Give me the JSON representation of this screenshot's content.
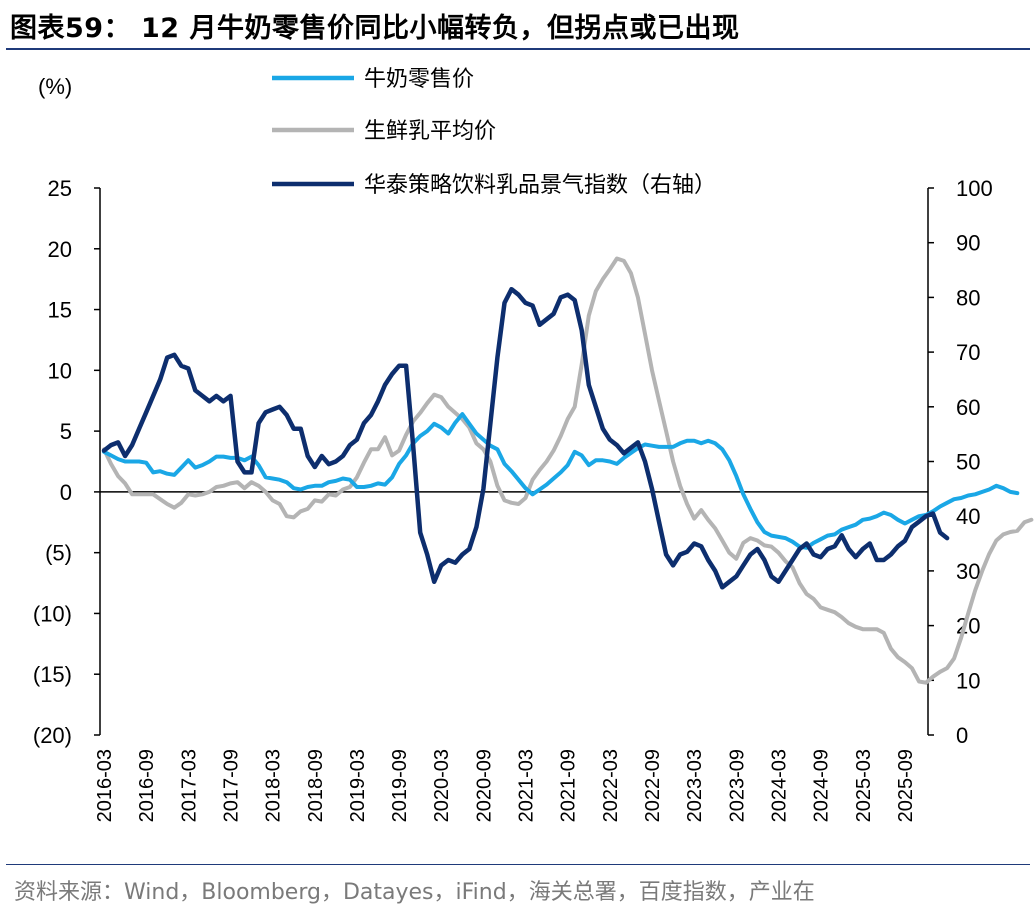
{
  "title": "图表59： 12 月牛奶零售价同比小幅转负，但拐点或已出现",
  "source": "资料来源：Wind，Bloomberg，Datayes，iFind，海关总署，百度指数，产业在",
  "chart_data": {
    "type": "line",
    "ylabel_left": "(%)",
    "y_left": {
      "min": -20,
      "max": 25,
      "step": 5,
      "tick_labels": [
        "(20)",
        "(15)",
        "(10)",
        "(5)",
        "0",
        "5",
        "10",
        "15",
        "20",
        "25"
      ]
    },
    "y_right": {
      "min": 0,
      "max": 100,
      "step": 10,
      "tick_labels": [
        "0",
        "10",
        "20",
        "30",
        "40",
        "50",
        "60",
        "70",
        "80",
        "90",
        "100"
      ]
    },
    "x_tick_labels": [
      "2016-03",
      "2016-09",
      "2017-03",
      "2017-09",
      "2018-03",
      "2018-09",
      "2019-03",
      "2019-09",
      "2020-03",
      "2020-09",
      "2021-03",
      "2021-09",
      "2022-03",
      "2022-09",
      "2023-03",
      "2023-09",
      "2024-03",
      "2024-09",
      "2025-03",
      "2025-09"
    ],
    "x_start": "2016-03",
    "x_end": "2025-12",
    "legend": [
      "牛奶零售价",
      "生鲜乳平均价",
      "华泰策略饮料乳品景气指数（右轴）"
    ],
    "series": [
      {
        "name": "牛奶零售价",
        "axis": "left",
        "color": "#1aa7e6",
        "values": [
          3.3,
          3.0,
          2.7,
          2.5,
          2.5,
          2.5,
          2.4,
          1.6,
          1.7,
          1.5,
          1.4,
          2.0,
          2.6,
          2.0,
          2.2,
          2.5,
          2.9,
          2.9,
          2.8,
          2.8,
          2.6,
          2.9,
          2.2,
          1.2,
          1.1,
          1.0,
          0.8,
          0.3,
          0.2,
          0.4,
          0.5,
          0.5,
          0.8,
          0.9,
          1.1,
          1.0,
          0.4,
          0.4,
          0.5,
          0.7,
          0.6,
          1.2,
          2.3,
          3.0,
          4.0,
          4.6,
          5.0,
          5.6,
          5.3,
          4.8,
          5.7,
          6.4,
          5.6,
          4.8,
          4.3,
          3.8,
          3.5,
          2.3,
          1.7,
          1.0,
          0.3,
          -0.2,
          0.2,
          0.6,
          1.1,
          1.6,
          2.2,
          3.3,
          3.0,
          2.2,
          2.6,
          2.6,
          2.5,
          2.3,
          2.8,
          3.2,
          3.6,
          3.9,
          3.8,
          3.7,
          3.7,
          3.7,
          4.0,
          4.2,
          4.2,
          4.0,
          4.2,
          4.0,
          3.5,
          2.6,
          1.3,
          -0.2,
          -1.4,
          -2.5,
          -3.3,
          -3.6,
          -3.7,
          -3.8,
          -4.1,
          -4.5,
          -4.6,
          -4.2,
          -3.9,
          -3.6,
          -3.5,
          -3.1,
          -2.9,
          -2.7,
          -2.3,
          -2.2,
          -2.0,
          -1.7,
          -1.9,
          -2.3,
          -2.6,
          -2.3,
          -2.0,
          -1.9,
          -1.6,
          -1.2,
          -0.9,
          -0.6,
          -0.5,
          -0.3,
          -0.2,
          0.0,
          0.2,
          0.5,
          0.3,
          0.0,
          -0.1
        ]
      },
      {
        "name": "生鲜乳平均价",
        "axis": "left",
        "color": "#b4b4b4",
        "values": [
          3.5,
          2.3,
          1.3,
          0.7,
          -0.2,
          -0.2,
          -0.2,
          -0.2,
          -0.6,
          -1.0,
          -1.3,
          -0.9,
          -0.2,
          -0.3,
          -0.2,
          0.0,
          0.4,
          0.5,
          0.7,
          0.8,
          0.3,
          0.8,
          0.5,
          0.0,
          -0.7,
          -1.0,
          -2.0,
          -2.1,
          -1.6,
          -1.4,
          -0.7,
          -0.8,
          -0.2,
          -0.3,
          0.2,
          0.4,
          1.2,
          2.4,
          3.5,
          3.5,
          4.5,
          3.0,
          3.4,
          4.7,
          5.8,
          6.5,
          7.3,
          8.0,
          7.8,
          7.0,
          6.5,
          6.0,
          5.3,
          4.0,
          3.5,
          2.5,
          0.5,
          -0.7,
          -0.9,
          -1.0,
          -0.5,
          1.0,
          1.8,
          2.5,
          3.4,
          4.6,
          6.0,
          7.0,
          10.5,
          14.5,
          16.5,
          17.5,
          18.3,
          19.2,
          19.0,
          18.0,
          16.0,
          13.0,
          10.0,
          7.5,
          5.0,
          2.5,
          0.5,
          -1.0,
          -2.2,
          -1.5,
          -2.3,
          -3.0,
          -4.0,
          -5.0,
          -5.5,
          -4.2,
          -3.8,
          -4.0,
          -4.4,
          -4.5,
          -5.0,
          -5.7,
          -6.2,
          -7.5,
          -8.4,
          -8.8,
          -9.5,
          -9.7,
          -9.9,
          -10.3,
          -10.8,
          -11.1,
          -11.3,
          -11.3,
          -11.3,
          -11.6,
          -12.9,
          -13.6,
          -14.0,
          -14.5,
          -15.6,
          -15.7,
          -15.2,
          -14.8,
          -14.5,
          -13.7,
          -12.0,
          -10.0,
          -8.1,
          -6.5,
          -5.1,
          -4.0,
          -3.5,
          -3.3,
          -3.2,
          -2.5,
          -2.3
        ]
      },
      {
        "name": "华泰策略饮料乳品景气指数（右轴）",
        "axis": "right",
        "color": "#0d2e6e",
        "values": [
          52.0,
          53.0,
          53.5,
          51.0,
          53.0,
          56.0,
          59.0,
          62.0,
          65.0,
          69.0,
          69.5,
          67.5,
          67.0,
          63.0,
          62.0,
          61.0,
          62.0,
          61.0,
          62.0,
          50.0,
          48.0,
          48.0,
          57.0,
          59.0,
          59.5,
          60.0,
          58.5,
          56.0,
          56.0,
          51.0,
          49.0,
          51.0,
          49.5,
          50.0,
          51.0,
          53.0,
          54.0,
          57.0,
          58.5,
          61.0,
          64.0,
          66.0,
          67.5,
          67.5,
          53.0,
          37.0,
          33.0,
          28.0,
          31.0,
          32.0,
          31.5,
          33.0,
          34.0,
          38.0,
          45.0,
          57.0,
          69.0,
          79.0,
          81.5,
          80.5,
          79.0,
          78.5,
          75.0,
          76.0,
          77.0,
          80.0,
          80.5,
          79.5,
          74.0,
          64.0,
          60.0,
          56.0,
          54.0,
          53.0,
          51.5,
          52.5,
          53.5,
          50.0,
          45.0,
          39.0,
          33.0,
          31.0,
          33.0,
          33.5,
          35.0,
          34.5,
          32.0,
          30.0,
          27.0,
          28.0,
          29.0,
          31.0,
          33.0,
          34.0,
          32.0,
          29.0,
          28.0,
          30.0,
          32.0,
          34.0,
          35.0,
          33.0,
          32.5,
          34.0,
          34.5,
          36.5,
          34.0,
          32.5,
          34.0,
          35.0,
          32.0,
          32.0,
          33.0,
          34.5,
          35.5,
          38.0,
          39.0,
          40.0,
          40.5,
          37.0,
          36.0
        ]
      }
    ]
  }
}
